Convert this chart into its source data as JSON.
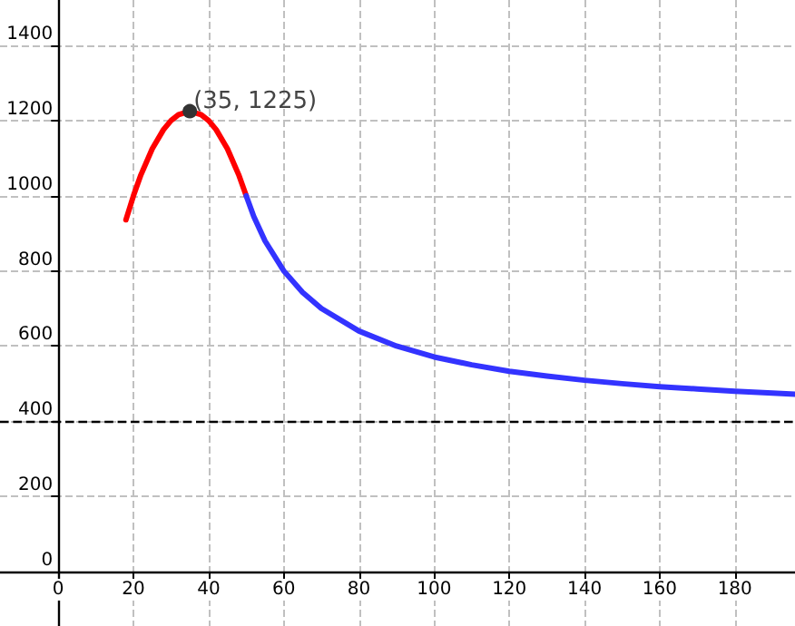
{
  "chart_data": {
    "type": "line",
    "xlim": [
      -15.5,
      196
    ],
    "ylim": [
      -145,
      1521
    ],
    "xticks": [
      0,
      20,
      40,
      60,
      80,
      100,
      120,
      140,
      160,
      180
    ],
    "yticks": [
      0,
      200,
      400,
      600,
      800,
      1000,
      1200,
      1400
    ],
    "grid": true,
    "marker": "none",
    "line_style": "solid",
    "series": [
      {
        "color": "#ff0000",
        "x": [
          18,
          20,
          22,
          25,
          28,
          30,
          32,
          35,
          38,
          40,
          42,
          45,
          48,
          50
        ],
        "values": [
          936,
          1000,
          1056,
          1125,
          1176,
          1200,
          1216,
          1225,
          1216,
          1200,
          1176,
          1125,
          1056,
          1000
        ]
      },
      {
        "color": "#3333ff",
        "x": [
          50,
          52,
          55,
          60,
          65,
          70,
          80,
          90,
          100,
          110,
          120,
          130,
          140,
          150,
          160,
          170,
          180,
          190,
          196
        ],
        "values": [
          1000,
          945,
          880,
          800,
          743,
          700,
          640,
          600,
          571,
          550,
          533,
          520,
          509,
          500,
          492,
          486,
          480,
          475,
          472
        ]
      },
      {
        "type": "scatter",
        "marker": "circle",
        "color": "#333333",
        "x": [
          35
        ],
        "values": [
          1225
        ]
      }
    ],
    "ref_lines": [
      {
        "axis": "y",
        "value": 400,
        "color": "#000000",
        "line_style": "dashed"
      }
    ],
    "annotations": [
      {
        "text": "(35, 1225)",
        "x": 35,
        "y": 1225
      }
    ]
  }
}
